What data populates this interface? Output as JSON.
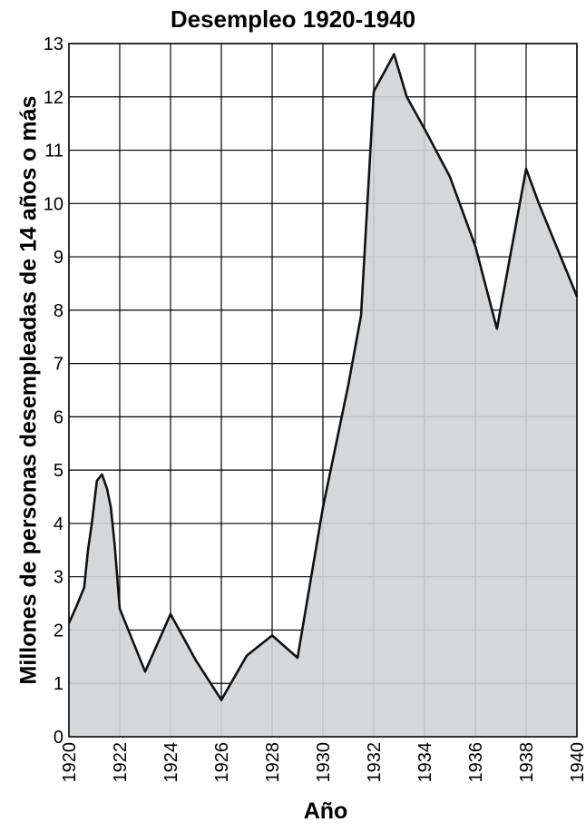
{
  "chart_data": {
    "type": "area",
    "title": "Desempleo 1920-1940",
    "xlabel": "Año",
    "ylabel": "Millones de personas desempleadas de 14 años o más",
    "xlim": [
      1920,
      1940
    ],
    "ylim": [
      0,
      13
    ],
    "x_ticks": [
      "1920",
      "1922",
      "1924",
      "1926",
      "1928",
      "1930",
      "1932",
      "1934",
      "1936",
      "1938",
      "1940"
    ],
    "y_ticks": [
      "0",
      "1",
      "2",
      "3",
      "4",
      "5",
      "6",
      "7",
      "8",
      "9",
      "10",
      "11",
      "12",
      "13"
    ],
    "grid": true,
    "fill_color": "#d1d3d4",
    "line_color": "#111111",
    "x": [
      1920,
      1920.3,
      1920.6,
      1920.75,
      1920.9,
      1921.1,
      1921.3,
      1921.5,
      1921.65,
      1921.8,
      1922,
      1923,
      1924,
      1925,
      1926,
      1927,
      1928,
      1929,
      1930,
      1931,
      1931.5,
      1932,
      1932.8,
      1933.3,
      1934,
      1935,
      1936,
      1936.85,
      1938,
      1938.5,
      1940
    ],
    "values": [
      2.13,
      2.45,
      2.8,
      3.5,
      4.0,
      4.8,
      4.92,
      4.65,
      4.3,
      3.6,
      2.4,
      1.22,
      2.3,
      1.43,
      0.69,
      1.52,
      1.9,
      1.48,
      4.3,
      6.6,
      7.9,
      12.1,
      12.8,
      12.0,
      11.4,
      10.5,
      9.2,
      7.65,
      10.65,
      10.0,
      8.26
    ]
  }
}
